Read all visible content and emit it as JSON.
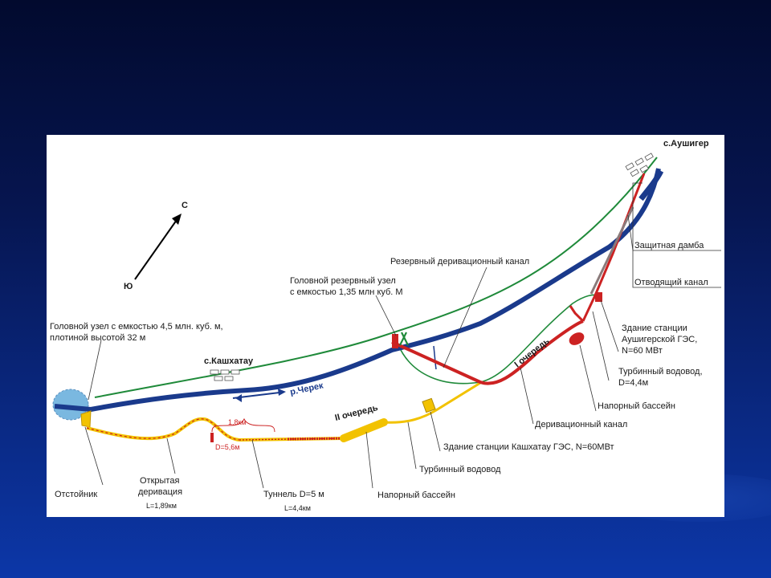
{
  "diagram": {
    "labels": {
      "ausheger_village": "с.Аушигер",
      "kashkhatau_village": "с.Кашхатау",
      "north": "С",
      "south": "Ю",
      "river": "р.Черек",
      "head_node": "Головной узел с емкостью 4,5 млн. куб. м,",
      "head_node_2": "плотиной высотой 32 м",
      "reserve_canal": "Резервный деривационный канал",
      "reserve_node": "Головной резервный узел",
      "reserve_node_2": "с емкостью 1,35 млн куб. М",
      "protective_dam": "Защитная дамба",
      "outlet_canal": "Отводящий канал",
      "aush_station_1": "Здание станции",
      "aush_station_2": "Аушигерской ГЭС,",
      "aush_station_3": "N=60 МВт",
      "turbine_conduit_1": "Турбинный водовод,",
      "turbine_conduit_1b": "D=4,4м",
      "pressure_basin_1": "Напорный бассейн",
      "derivation_canal": "Деривационный канал",
      "kash_station": "Здание станции Кашхатау ГЭС, N=60МВт",
      "turbine_conduit_2": "Турбинный водовод",
      "pressure_basin_2": "Напорный бассейн",
      "tunnel": "Туннель D=5 м",
      "tunnel_length": "L=4,4км",
      "open_derivation_1": "Открытая",
      "open_derivation_2": "деривация",
      "open_derivation_length": "L=1,89км",
      "settler": "Отстойник",
      "stage_1": "I очередь",
      "stage_2": "II очередь",
      "segment_length": "1,8км",
      "segment_diameter": "D=5,6м"
    },
    "colors": {
      "river": "#1a3a8c",
      "stage1": "#cc2222",
      "stage2": "#f2c200",
      "road": "#1f8a3a",
      "dam": "#8a7a7a",
      "reservoir": "#7ab8e0",
      "panel_bg": "#ffffff"
    }
  }
}
